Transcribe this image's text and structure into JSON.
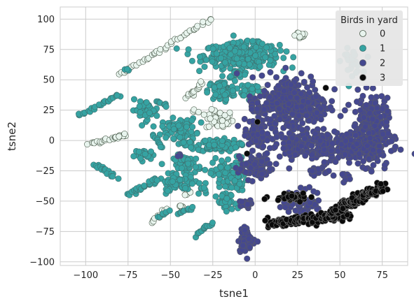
{
  "chart_data": {
    "type": "scatter",
    "title": "",
    "xlabel": "tsne1",
    "ylabel": "tsne2",
    "xlim": [
      -115,
      90
    ],
    "ylim": [
      -103,
      110
    ],
    "xticks": [
      -100,
      -75,
      -50,
      -25,
      0,
      25,
      50,
      75
    ],
    "yticks": [
      -100,
      -75,
      -50,
      -25,
      0,
      25,
      50,
      75,
      100
    ],
    "grid": true,
    "legend": {
      "title": "Birds in yard",
      "placement": "top-right",
      "entries": [
        "0",
        "1",
        "2",
        "3"
      ]
    },
    "series": [
      {
        "name": "0",
        "color": "#e8f4ee",
        "edge": "#4a5a4a",
        "clusters": [
          {
            "type": "line",
            "from": [
              -80,
              54
            ],
            "to": [
              -26,
              100
            ],
            "n": 42,
            "jitter": 1.2
          },
          {
            "type": "line",
            "from": [
              -98,
              -3
            ],
            "to": [
              -77,
              4
            ],
            "n": 22,
            "jitter": 1.0
          },
          {
            "type": "line",
            "from": [
              -61,
              -68
            ],
            "to": [
              -52,
              -56
            ],
            "n": 12,
            "jitter": 1.2
          },
          {
            "type": "line",
            "from": [
              -40,
              35
            ],
            "to": [
              -32,
              47
            ],
            "n": 14,
            "jitter": 1.5
          },
          {
            "type": "blob",
            "center": [
              -21,
              17
            ],
            "spread": [
              4,
              4
            ],
            "n": 40
          },
          {
            "type": "blob",
            "center": [
              26,
              87
            ],
            "spread": [
              2.5,
              1.5
            ],
            "n": 12
          },
          {
            "type": "blob",
            "center": [
              -40,
              -43
            ],
            "spread": [
              1.5,
              1.5
            ],
            "n": 6
          },
          {
            "type": "blob",
            "center": [
              -43,
              -55
            ],
            "spread": [
              1.5,
              1.2
            ],
            "n": 6
          },
          {
            "type": "blob",
            "center": [
              -43,
              5
            ],
            "spread": [
              1.2,
              1.2
            ],
            "n": 4
          },
          {
            "type": "blob",
            "center": [
              -34,
              25
            ],
            "spread": [
              1.2,
              1.2
            ],
            "n": 4
          },
          {
            "type": "blob",
            "center": [
              -80,
              4
            ],
            "spread": [
              2,
              1
            ],
            "n": 8
          },
          {
            "type": "blob",
            "center": [
              2,
              42
            ],
            "spread": [
              1.5,
              1.5
            ],
            "n": 4
          }
        ]
      },
      {
        "name": "1",
        "color": "#35a3a2",
        "edge": "#3f6f6e",
        "clusters": [
          {
            "type": "blob",
            "center": [
              -8,
              70
            ],
            "spread": [
              11,
              5
            ],
            "n": 320
          },
          {
            "type": "blob",
            "center": [
              -10,
              55
            ],
            "spread": [
              3,
              1.5
            ],
            "n": 18
          },
          {
            "type": "blob",
            "center": [
              57,
              65
            ],
            "spread": [
              3,
              5
            ],
            "n": 30
          },
          {
            "type": "blob",
            "center": [
              -20,
              41
            ],
            "spread": [
              4,
              4
            ],
            "n": 90
          },
          {
            "type": "blob",
            "center": [
              -3,
              42
            ],
            "spread": [
              3,
              3
            ],
            "n": 40
          },
          {
            "type": "blob",
            "center": [
              -22,
              -4
            ],
            "spread": [
              6,
              2.5
            ],
            "n": 110
          },
          {
            "type": "blob",
            "center": [
              -15,
              -28
            ],
            "spread": [
              5,
              7
            ],
            "n": 90
          },
          {
            "type": "blob",
            "center": [
              -17,
              -52
            ],
            "spread": [
              3,
              4
            ],
            "n": 30
          },
          {
            "type": "blob",
            "center": [
              -45,
              10
            ],
            "spread": [
              5,
              4
            ],
            "n": 80
          },
          {
            "type": "blob",
            "center": [
              -65,
              25
            ],
            "spread": [
              4,
              4
            ],
            "n": 40
          },
          {
            "type": "blob",
            "center": [
              -65,
              -12
            ],
            "spread": [
              3,
              2
            ],
            "n": 25
          },
          {
            "type": "blob",
            "center": [
              -40,
              -20
            ],
            "spread": [
              4,
              4
            ],
            "n": 50
          },
          {
            "type": "blob",
            "center": [
              -45,
              -35
            ],
            "spread": [
              6,
              3
            ],
            "n": 60
          },
          {
            "type": "line",
            "from": [
              -105,
              20
            ],
            "to": [
              -80,
              38
            ],
            "n": 28,
            "jitter": 1.2
          },
          {
            "type": "line",
            "from": [
              -95,
              -20
            ],
            "to": [
              -82,
              -30
            ],
            "n": 18,
            "jitter": 1.5
          },
          {
            "type": "line",
            "from": [
              -75,
              -45
            ],
            "to": [
              -58,
              -32
            ],
            "n": 24,
            "jitter": 1.5
          },
          {
            "type": "line",
            "from": [
              -35,
              -78
            ],
            "to": [
              -26,
              -68
            ],
            "n": 14,
            "jitter": 1.2
          },
          {
            "type": "line",
            "from": [
              -45,
              -60
            ],
            "to": [
              -37,
              -55
            ],
            "n": 10,
            "jitter": 1.0
          },
          {
            "type": "line",
            "from": [
              -58,
              33
            ],
            "to": [
              -52,
              28
            ],
            "n": 8,
            "jitter": 1.0
          },
          {
            "type": "line",
            "from": [
              -60,
              3
            ],
            "to": [
              -55,
              -5
            ],
            "n": 10,
            "jitter": 1.0
          },
          {
            "type": "line",
            "from": [
              -57,
              -63
            ],
            "to": [
              -50,
              -58
            ],
            "n": 8,
            "jitter": 1.0
          },
          {
            "type": "blob",
            "center": [
              -75,
              58
            ],
            "spread": [
              1,
              1
            ],
            "n": 3
          },
          {
            "type": "blob",
            "center": [
              -40,
              -3
            ],
            "spread": [
              2,
              2
            ],
            "n": 12
          },
          {
            "type": "blob",
            "center": [
              -31,
              -41
            ],
            "spread": [
              2,
              2
            ],
            "n": 10
          }
        ]
      },
      {
        "name": "2",
        "color": "#45488f",
        "edge": "#585a6a",
        "clusters": [
          {
            "type": "blob",
            "center": [
              68,
              7
            ],
            "spread": [
              5,
              14
            ],
            "n": 320
          },
          {
            "type": "blob",
            "center": [
              23,
              30
            ],
            "spread": [
              10,
              12
            ],
            "n": 320
          },
          {
            "type": "blob",
            "center": [
              38,
              -5
            ],
            "spread": [
              17,
              6
            ],
            "n": 260
          },
          {
            "type": "blob",
            "center": [
              0,
              -22
            ],
            "spread": [
              5,
              5
            ],
            "n": 90
          },
          {
            "type": "blob",
            "center": [
              0,
              5
            ],
            "spread": [
              3,
              6
            ],
            "n": 60
          },
          {
            "type": "blob",
            "center": [
              1,
              27
            ],
            "spread": [
              2,
              3
            ],
            "n": 20
          },
          {
            "type": "blob",
            "center": [
              28,
              -52
            ],
            "spread": [
              6,
              6
            ],
            "n": 70
          },
          {
            "type": "blob",
            "center": [
              -5,
              -82
            ],
            "spread": [
              2.5,
              5
            ],
            "n": 60
          },
          {
            "type": "blob",
            "center": [
              -5,
              -53
            ],
            "spread": [
              2,
              2
            ],
            "n": 20
          },
          {
            "type": "blob",
            "center": [
              37,
              -25
            ],
            "spread": [
              3,
              2
            ],
            "n": 20
          },
          {
            "type": "blob",
            "center": [
              51,
              -30
            ],
            "spread": [
              2,
              1.5
            ],
            "n": 10
          },
          {
            "type": "blob",
            "center": [
              -45,
              -12
            ],
            "spread": [
              1,
              1
            ],
            "n": 3
          }
        ]
      },
      {
        "name": "3",
        "color": "#0a0a0a",
        "edge": "#777777",
        "clusters": [
          {
            "type": "line",
            "from": [
              8,
              -68
            ],
            "to": [
              55,
              -62
            ],
            "n": 220,
            "jitter": 3.0
          },
          {
            "type": "line",
            "from": [
              45,
              -60
            ],
            "to": [
              75,
              -38
            ],
            "n": 200,
            "jitter": 3.0
          },
          {
            "type": "blob",
            "center": [
              22,
              -46
            ],
            "spread": [
              6,
              2
            ],
            "n": 40
          },
          {
            "type": "blob",
            "center": [
              42,
              43
            ],
            "spread": [
              0.6,
              0.6
            ],
            "n": 1
          },
          {
            "type": "blob",
            "center": [
              -5,
              -11
            ],
            "spread": [
              0.6,
              0.6
            ],
            "n": 1
          },
          {
            "type": "blob",
            "center": [
              2,
              15
            ],
            "spread": [
              0.6,
              0.6
            ],
            "n": 1
          }
        ]
      }
    ]
  }
}
